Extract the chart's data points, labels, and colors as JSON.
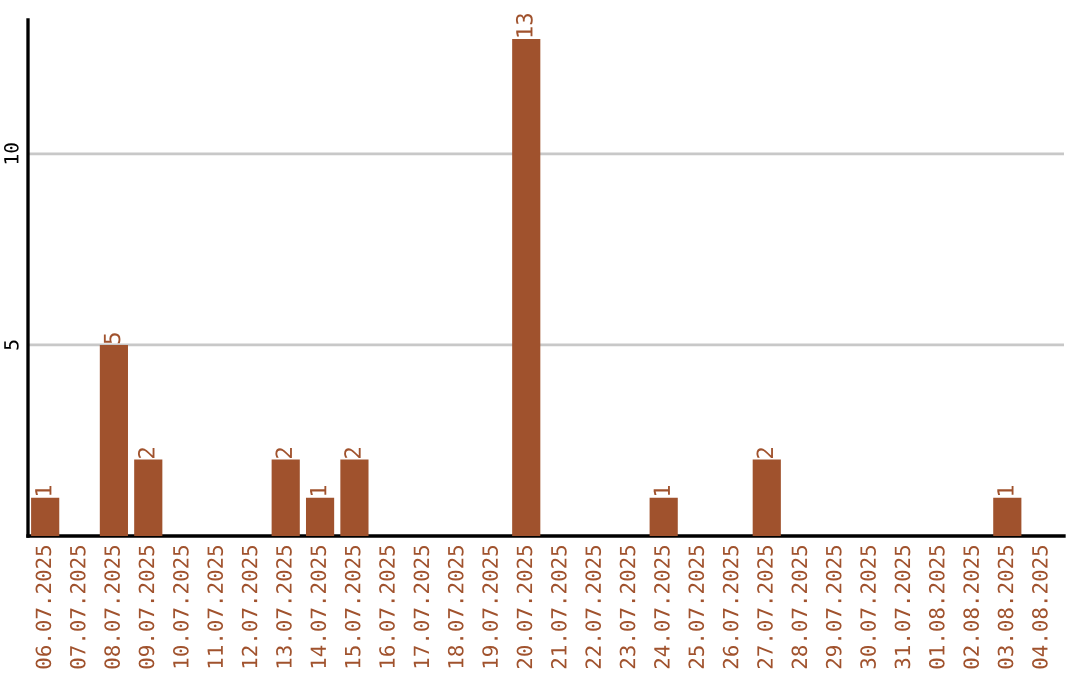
{
  "chart_data": {
    "type": "bar",
    "categories": [
      "06.07.2025",
      "07.07.2025",
      "08.07.2025",
      "09.07.2025",
      "10.07.2025",
      "11.07.2025",
      "12.07.2025",
      "13.07.2025",
      "14.07.2025",
      "15.07.2025",
      "16.07.2025",
      "17.07.2025",
      "18.07.2025",
      "19.07.2025",
      "20.07.2025",
      "21.07.2025",
      "22.07.2025",
      "23.07.2025",
      "24.07.2025",
      "25.07.2025",
      "26.07.2025",
      "27.07.2025",
      "28.07.2025",
      "29.07.2025",
      "30.07.2025",
      "31.07.2025",
      "01.08.2025",
      "02.08.2025",
      "03.08.2025",
      "04.08.2025"
    ],
    "values": [
      1,
      0,
      5,
      2,
      0,
      0,
      0,
      2,
      1,
      2,
      0,
      0,
      0,
      0,
      13,
      0,
      0,
      0,
      1,
      0,
      0,
      2,
      0,
      0,
      0,
      0,
      0,
      0,
      1,
      0
    ],
    "value_labels": [
      "1",
      null,
      "5",
      "2",
      null,
      null,
      null,
      "2",
      "1",
      "2",
      null,
      null,
      null,
      null,
      "13",
      null,
      null,
      null,
      "1",
      null,
      null,
      "2",
      null,
      null,
      null,
      null,
      null,
      null,
      "1",
      null
    ],
    "color": "#a0522d",
    "ylim": [
      0,
      13.5
    ],
    "yticks": [
      5,
      10
    ],
    "grid": "y",
    "legend": false
  }
}
